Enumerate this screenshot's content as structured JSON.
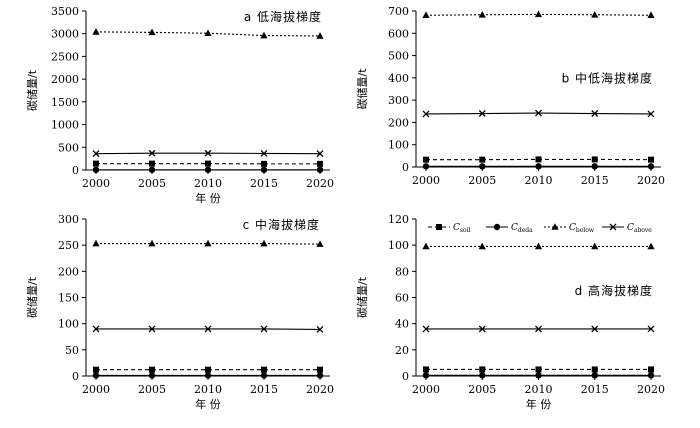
{
  "chart_data": [
    {
      "type": "line",
      "title": "a 低海拔梯度",
      "xlabel": "年 份",
      "ylabel": "碳储量/t",
      "x": [
        2000,
        2005,
        2010,
        2015,
        2020
      ],
      "ylim": [
        0,
        3500
      ],
      "yticks": [
        0,
        500,
        1000,
        1500,
        2000,
        2500,
        3000,
        3500
      ],
      "legend": false,
      "series": [
        {
          "key": "soil",
          "values": [
            140,
            140,
            140,
            135,
            135
          ]
        },
        {
          "key": "deda",
          "values": [
            5,
            5,
            5,
            5,
            5
          ]
        },
        {
          "key": "below",
          "values": [
            3040,
            3030,
            3010,
            2960,
            2950
          ]
        },
        {
          "key": "above",
          "values": [
            360,
            370,
            370,
            365,
            360
          ]
        }
      ]
    },
    {
      "type": "line",
      "title": "b 中低海拔梯度",
      "xlabel": "",
      "ylabel": "碳储量/t",
      "x": [
        2000,
        2005,
        2010,
        2015,
        2020
      ],
      "ylim": [
        0,
        700
      ],
      "yticks": [
        0,
        100,
        200,
        300,
        400,
        500,
        600,
        700
      ],
      "legend": false,
      "series": [
        {
          "key": "soil",
          "values": [
            33,
            33,
            34,
            34,
            33
          ]
        },
        {
          "key": "deda",
          "values": [
            3,
            3,
            3,
            3,
            3
          ]
        },
        {
          "key": "below",
          "values": [
            681,
            683,
            685,
            683,
            681
          ]
        },
        {
          "key": "above",
          "values": [
            238,
            240,
            242,
            240,
            238
          ]
        }
      ]
    },
    {
      "type": "line",
      "title": "c 中海拔梯度",
      "xlabel": "年 份",
      "ylabel": "碳储量/t",
      "x": [
        2000,
        2005,
        2010,
        2015,
        2020
      ],
      "ylim": [
        0,
        300
      ],
      "yticks": [
        0,
        50,
        100,
        150,
        200,
        250,
        300
      ],
      "legend": false,
      "series": [
        {
          "key": "soil",
          "values": [
            12,
            12,
            12,
            12,
            12
          ]
        },
        {
          "key": "deda",
          "values": [
            1,
            1,
            1,
            1,
            1
          ]
        },
        {
          "key": "below",
          "values": [
            253,
            253,
            253,
            253,
            252
          ]
        },
        {
          "key": "above",
          "values": [
            90,
            90,
            90,
            90,
            89
          ]
        }
      ]
    },
    {
      "type": "line",
      "title": "d 高海拔梯度",
      "xlabel": "年 份",
      "ylabel": "碳储量/t",
      "x": [
        2000,
        2005,
        2010,
        2015,
        2020
      ],
      "ylim": [
        0,
        120
      ],
      "yticks": [
        0,
        20,
        40,
        60,
        80,
        100,
        120
      ],
      "legend": true,
      "legend_position": "top",
      "series": [
        {
          "key": "soil",
          "values": [
            5,
            5,
            5,
            5,
            5
          ]
        },
        {
          "key": "deda",
          "values": [
            0.5,
            0.5,
            0.5,
            0.5,
            0.5
          ]
        },
        {
          "key": "below",
          "values": [
            99,
            99,
            99,
            99,
            99
          ]
        },
        {
          "key": "above",
          "values": [
            36,
            36,
            36,
            36,
            36
          ]
        }
      ]
    }
  ],
  "legend_entries": [
    {
      "key": "soil",
      "main": "C",
      "sub": "soil",
      "marker": "square",
      "dash": "dashed"
    },
    {
      "key": "deda",
      "main": "C",
      "sub": "deda",
      "marker": "circle",
      "dash": "solid"
    },
    {
      "key": "below",
      "main": "C",
      "sub": "below",
      "marker": "triangle",
      "dash": "dotted"
    },
    {
      "key": "above",
      "main": "C",
      "sub": "above",
      "marker": "cross",
      "dash": "solid"
    }
  ],
  "colors": {
    "ink": "#000000",
    "background": "#ffffff"
  }
}
